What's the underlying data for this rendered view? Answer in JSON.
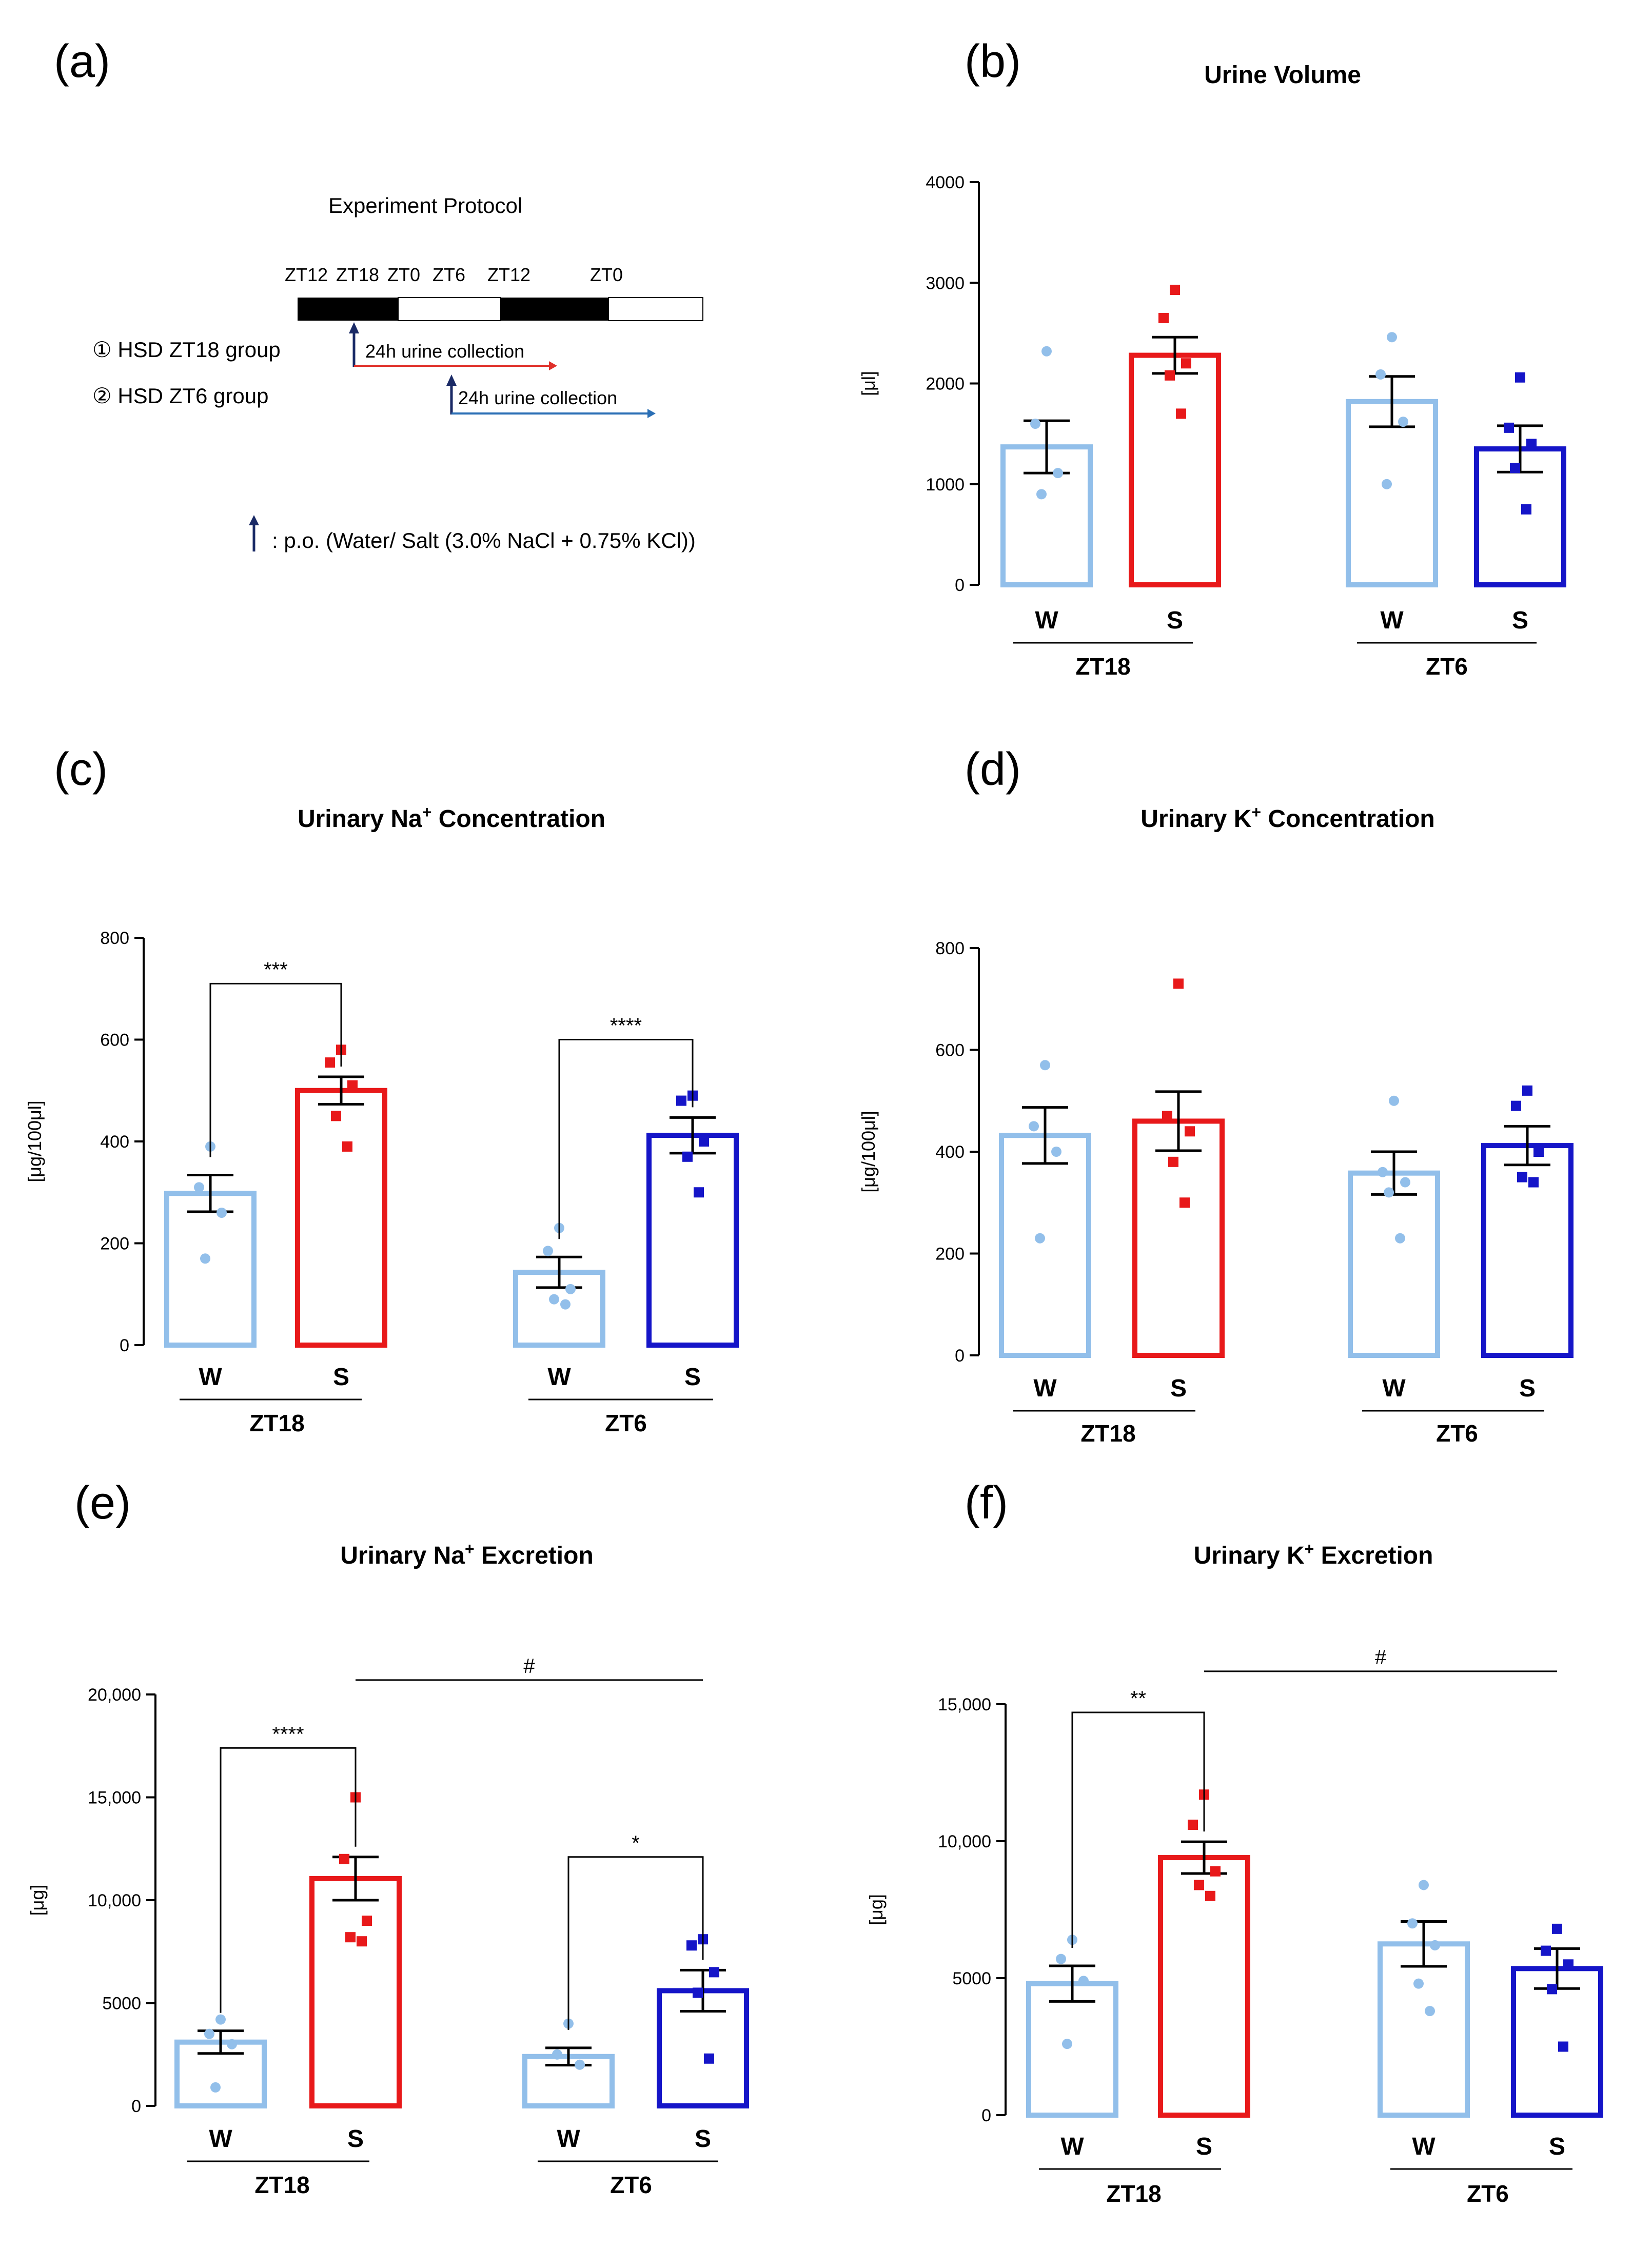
{
  "panels_labels": [
    "(a)",
    "(b)",
    "(c)",
    "(d)",
    "(e)",
    "(f)"
  ],
  "protocol": {
    "title": "Experiment Protocol",
    "timeline_labels": [
      "ZT12",
      "ZT18",
      "ZT0",
      "ZT6",
      "ZT12",
      "ZT0"
    ],
    "group1": "① HSD ZT18 group",
    "group2": "② HSD ZT6 group",
    "collection1": "24h  urine collection",
    "collection2": "24h  urine collection",
    "legend": ": p.o. (Water/ Salt (3.0% NaCl + 0.75% KCl))",
    "colors": {
      "collection1": "#e0302a",
      "collection2": "#2a6fb5",
      "arrow": "#1a2a66"
    }
  },
  "colors": {
    "W": "#92bfea",
    "S_ZT18": "#e8191a",
    "S_ZT6": "#1515c8"
  },
  "chart_data": [
    {
      "id": "b",
      "type": "bar",
      "title": "Urine Volume",
      "title_sup": "",
      "title_rest": "",
      "ylabel": "[μl]",
      "ylim": [
        0,
        4000
      ],
      "yticks": [
        0,
        1000,
        2000,
        3000,
        4000
      ],
      "ytick_labels": [
        "0",
        "1000",
        "2000",
        "3000",
        "4000"
      ],
      "categories": [
        "W",
        "S",
        "W",
        "S"
      ],
      "groups": [
        "ZT18",
        "ZT6"
      ],
      "values": [
        1370,
        2280,
        1820,
        1350
      ],
      "errors": [
        260,
        180,
        250,
        230
      ],
      "points": [
        [
          2320,
          1600,
          1110,
          900
        ],
        [
          2930,
          2650,
          2200,
          2080,
          1700
        ],
        [
          2460,
          2090,
          1620,
          1000
        ],
        [
          2060,
          1560,
          1400,
          1160,
          750
        ]
      ],
      "significance": []
    },
    {
      "id": "c",
      "type": "bar",
      "title": "Urinary Na",
      "title_sup": "+",
      "title_rest": " Concentration",
      "ylabel": "[μg/100μl]",
      "ylim": [
        0,
        800
      ],
      "yticks": [
        0,
        200,
        400,
        600,
        800
      ],
      "ytick_labels": [
        "0",
        "200",
        "400",
        "600",
        "800"
      ],
      "categories": [
        "W",
        "S",
        "W",
        "S"
      ],
      "groups": [
        "ZT18",
        "ZT6"
      ],
      "values": [
        298,
        500,
        143,
        412
      ],
      "errors": [
        36,
        27,
        30,
        35
      ],
      "points": [
        [
          390,
          310,
          260,
          170
        ],
        [
          580,
          555,
          510,
          450,
          390
        ],
        [
          230,
          185,
          110,
          90,
          80
        ],
        [
          490,
          480,
          400,
          370,
          300
        ]
      ],
      "significance": [
        {
          "from": 0,
          "to": 1,
          "level": 710,
          "label": "***"
        },
        {
          "from": 2,
          "to": 3,
          "level": 600,
          "label": "****"
        }
      ]
    },
    {
      "id": "d",
      "type": "bar",
      "title": "Urinary K",
      "title_sup": "+",
      "title_rest": " Concentration",
      "ylabel": "[μg/100μl]",
      "ylim": [
        0,
        800
      ],
      "yticks": [
        0,
        200,
        400,
        600,
        800
      ],
      "ytick_labels": [
        "0",
        "200",
        "400",
        "600",
        "800"
      ],
      "categories": [
        "W",
        "S",
        "W",
        "S"
      ],
      "groups": [
        "ZT18",
        "ZT6"
      ],
      "values": [
        432,
        460,
        358,
        412
      ],
      "errors": [
        55,
        58,
        42,
        38
      ],
      "points": [
        [
          570,
          450,
          400,
          230
        ],
        [
          730,
          470,
          440,
          380,
          300
        ],
        [
          500,
          360,
          340,
          320,
          230
        ],
        [
          520,
          490,
          400,
          350,
          340
        ]
      ],
      "significance": []
    },
    {
      "id": "e",
      "type": "bar",
      "title": "Urinary Na",
      "title_sup": "+",
      "title_rest": " Excretion",
      "ylabel": "[μg]",
      "ylim": [
        0,
        20000
      ],
      "yticks": [
        0,
        5000,
        10000,
        15000,
        20000
      ],
      "ytick_labels": [
        "0",
        "5000",
        "10,000",
        "15,000",
        "20,000"
      ],
      "categories": [
        "W",
        "S",
        "W",
        "S"
      ],
      "groups": [
        "ZT18",
        "ZT6"
      ],
      "values": [
        3100,
        11050,
        2400,
        5600
      ],
      "errors": [
        550,
        1050,
        420,
        1000
      ],
      "points": [
        [
          4200,
          3500,
          3000,
          900
        ],
        [
          15000,
          12000,
          9000,
          8200,
          8000
        ],
        [
          4000,
          2500,
          2000
        ],
        [
          8100,
          7800,
          6500,
          5500,
          2300
        ]
      ],
      "significance": [
        {
          "from": 0,
          "to": 1,
          "level": 17400,
          "label": "****"
        },
        {
          "from": 2,
          "to": 3,
          "level": 12100,
          "label": "*"
        }
      ],
      "hash": {
        "from": 1,
        "to": 3,
        "level": 20700,
        "label": "#"
      }
    },
    {
      "id": "f",
      "type": "bar",
      "title": "Urinary K",
      "title_sup": "+",
      "title_rest": " Excretion",
      "ylabel": "[μg]",
      "ylim": [
        0,
        15000
      ],
      "yticks": [
        0,
        5000,
        10000,
        15000
      ],
      "ytick_labels": [
        "0",
        "5000",
        "10,000",
        "15,000"
      ],
      "categories": [
        "W",
        "S",
        "W",
        "S"
      ],
      "groups": [
        "ZT18",
        "ZT6"
      ],
      "values": [
        4800,
        9400,
        6250,
        5350
      ],
      "errors": [
        650,
        580,
        820,
        730
      ],
      "points": [
        [
          6400,
          5700,
          4900,
          2600
        ],
        [
          11700,
          10600,
          8900,
          8400,
          8000
        ],
        [
          8400,
          7000,
          6200,
          4800,
          3800
        ],
        [
          6800,
          6000,
          5500,
          4600,
          2500
        ]
      ],
      "significance": [
        {
          "from": 0,
          "to": 1,
          "level": 14700,
          "label": "**"
        }
      ],
      "hash": {
        "from": 1,
        "to": 3,
        "level": 16200,
        "label": "#"
      }
    }
  ]
}
